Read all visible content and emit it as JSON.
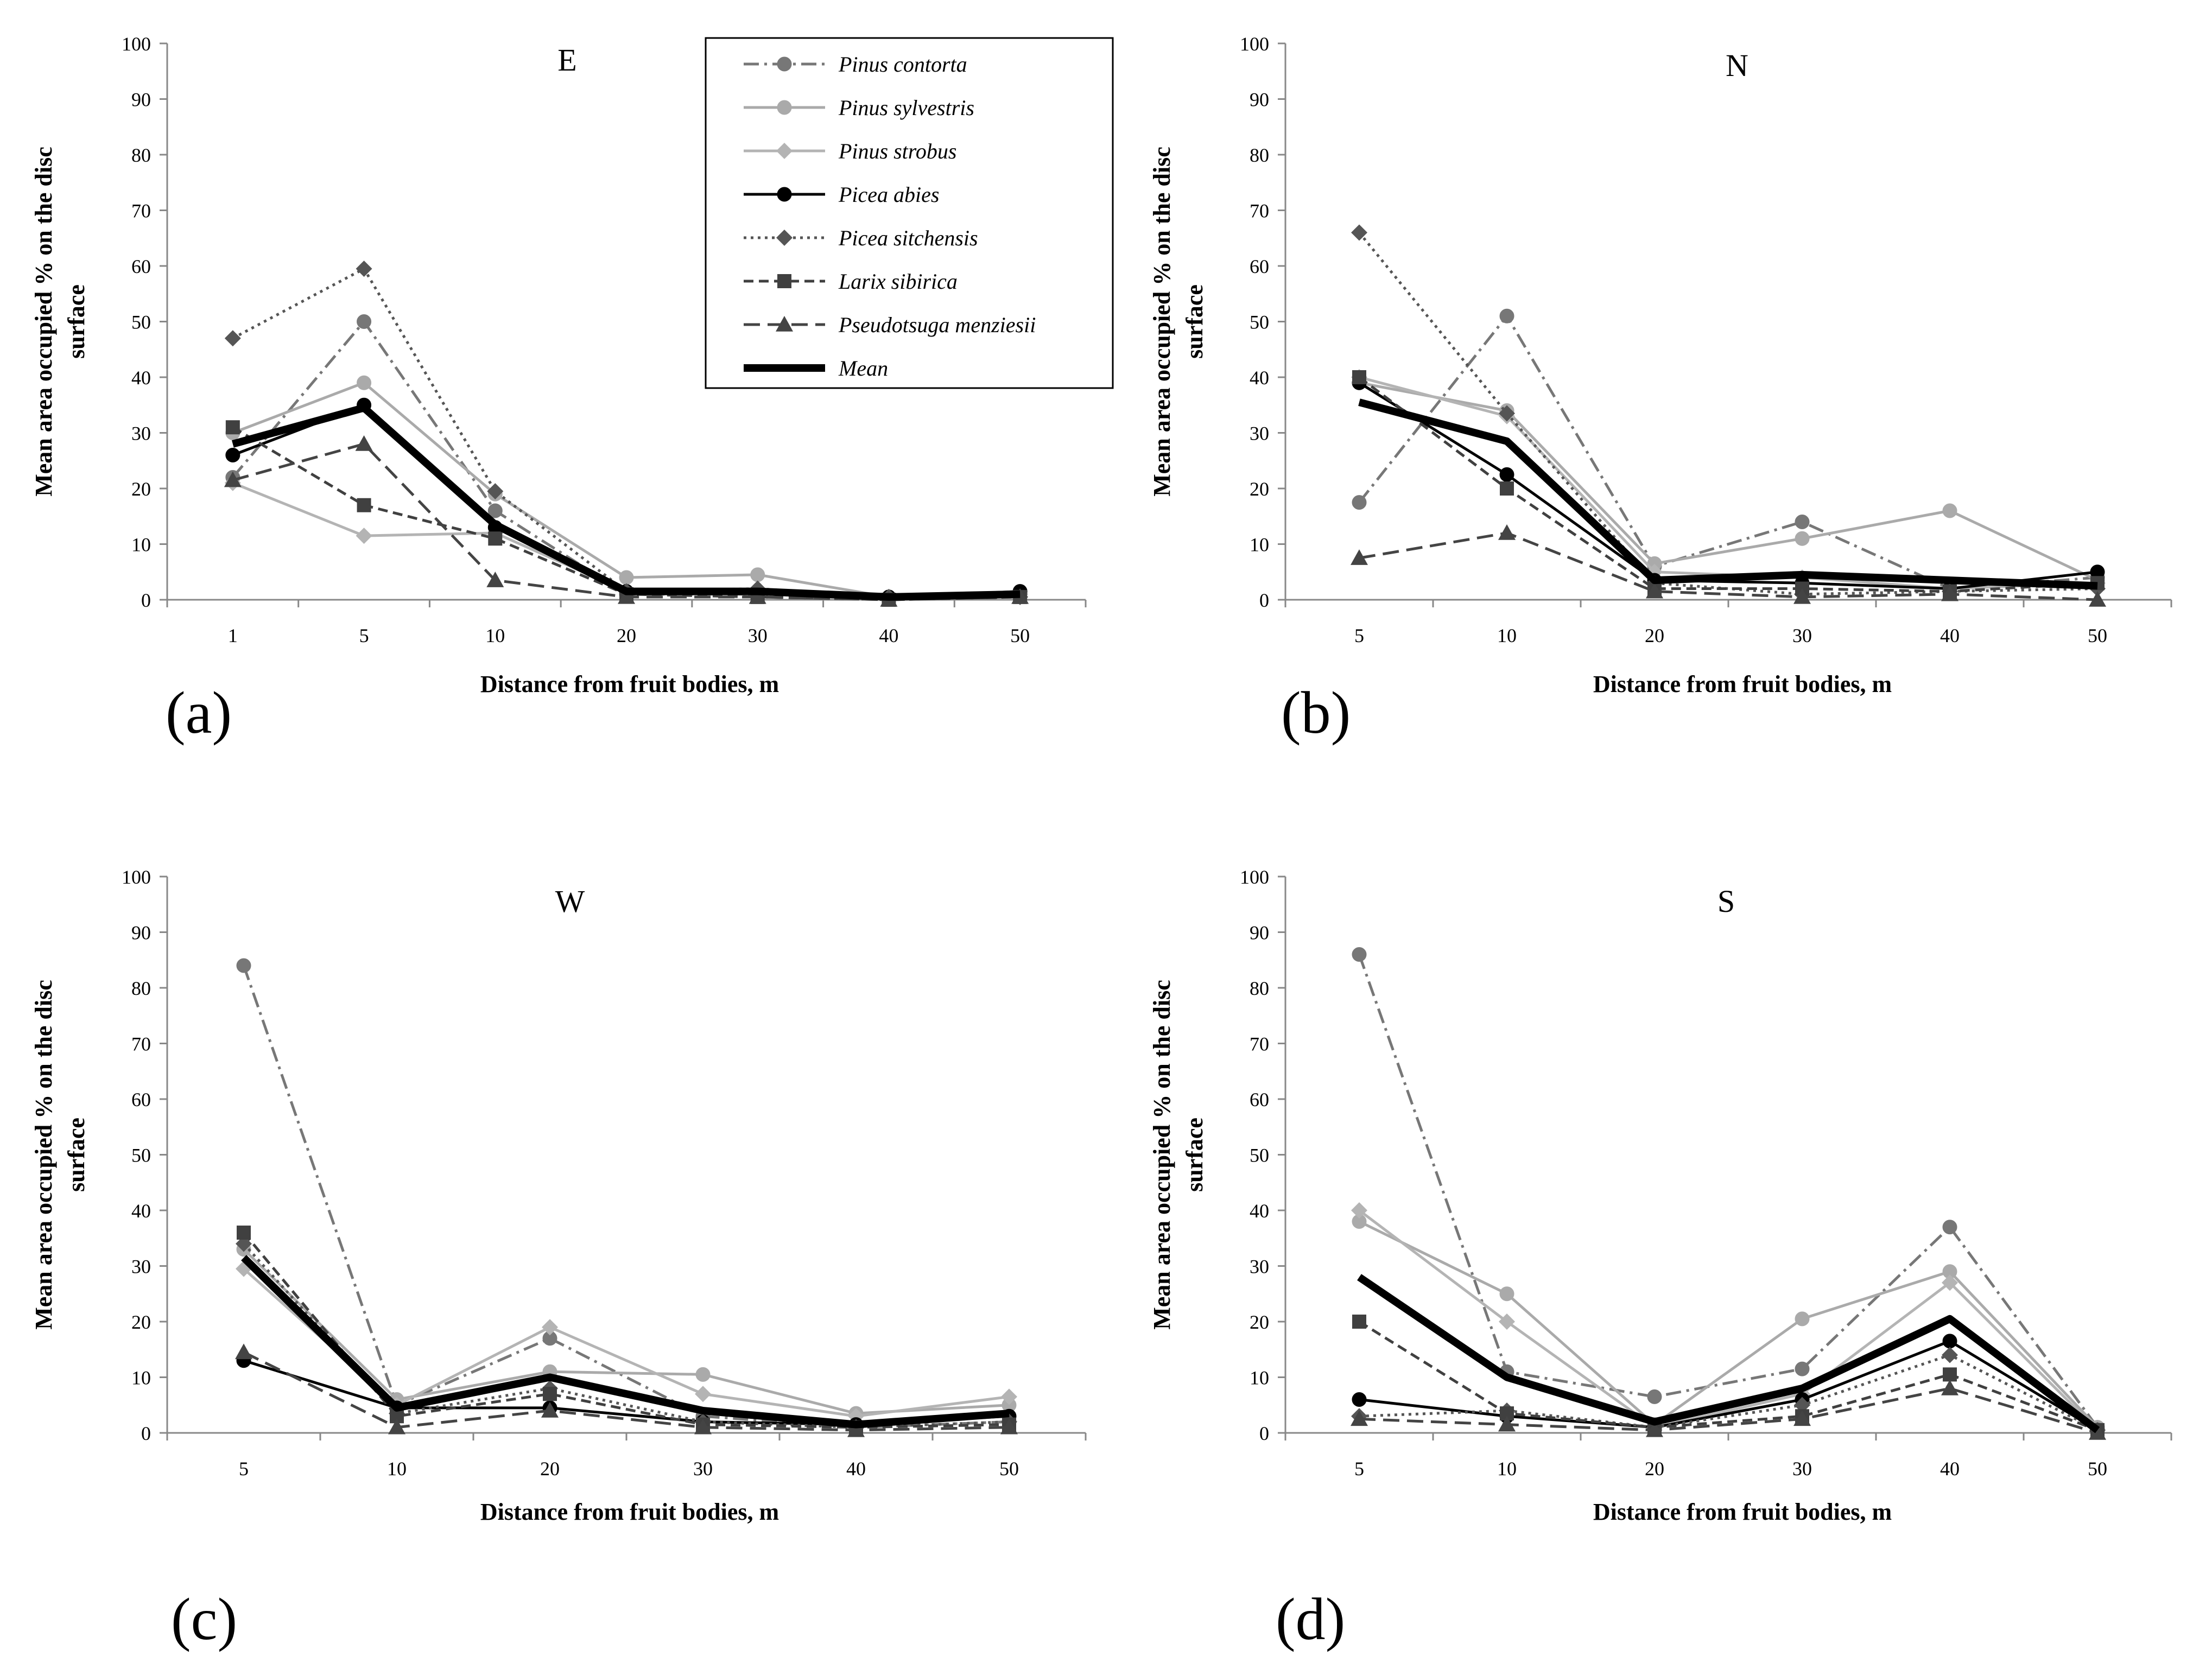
{
  "legend": {
    "entries": [
      {
        "name": "Pinus contorta",
        "color": "#777777",
        "dash": "dashdot",
        "marker": "circle",
        "width": 2
      },
      {
        "name": "Pinus sylvestris",
        "color": "#aaaaaa",
        "dash": "solid",
        "marker": "circle",
        "width": 2
      },
      {
        "name": "Pinus strobus",
        "color": "#b4b4b4",
        "dash": "solid",
        "marker": "diamond",
        "width": 2
      },
      {
        "name": "Picea abies",
        "color": "#000000",
        "dash": "solid",
        "marker": "circle",
        "width": 2
      },
      {
        "name": "Picea sitchensis",
        "color": "#555555",
        "dash": "dot",
        "marker": "diamond",
        "width": 2
      },
      {
        "name": "Larix sibirica",
        "color": "#404040",
        "dash": "dash",
        "marker": "square",
        "width": 2
      },
      {
        "name": "Pseudotsuga menziesii",
        "color": "#444444",
        "dash": "longdash",
        "marker": "triangle",
        "width": 2
      },
      {
        "name": "Mean",
        "color": "#000000",
        "dash": "solid",
        "marker": "none",
        "width": 5
      }
    ]
  },
  "chart_data": [
    {
      "type": "line",
      "label": "(a)",
      "title": "E",
      "xlabel": "Distance from fruit bodies, m",
      "ylabel_lines": [
        "Mean area occupied % on the disc",
        "surface"
      ],
      "x": [
        "1",
        "5",
        "10",
        "20",
        "30",
        "40",
        "50"
      ],
      "ylim": [
        0,
        100
      ],
      "yticks": [
        0,
        10,
        20,
        30,
        40,
        50,
        60,
        70,
        80,
        90,
        100
      ],
      "series": [
        {
          "name": "Pinus contorta",
          "values": [
            22,
            50,
            16,
            1,
            1,
            0.5,
            1.5
          ]
        },
        {
          "name": "Pinus sylvestris",
          "values": [
            30,
            39,
            19,
            4,
            4.5,
            0.5,
            1
          ]
        },
        {
          "name": "Pinus strobus",
          "values": [
            21,
            11.5,
            12,
            1.5,
            1.5,
            0.5,
            1
          ]
        },
        {
          "name": "Picea abies",
          "values": [
            26,
            35,
            13,
            1.5,
            1.5,
            0.5,
            1.5
          ]
        },
        {
          "name": "Picea sitchensis",
          "values": [
            47,
            59.5,
            19.5,
            1.5,
            2,
            0.5,
            0.5
          ]
        },
        {
          "name": "Larix sibirica",
          "values": [
            31,
            17,
            11,
            1,
            0.5,
            0,
            0.5
          ]
        },
        {
          "name": "Pseudotsuga menziesii",
          "values": [
            21.5,
            28,
            3.5,
            0.5,
            0.5,
            0,
            0.5
          ]
        },
        {
          "name": "Mean",
          "values": [
            28,
            34.5,
            13.5,
            1.5,
            1.5,
            0.5,
            1
          ]
        }
      ]
    },
    {
      "type": "line",
      "label": "(b)",
      "title": "N",
      "xlabel": "Distance from fruit bodies, m",
      "ylabel_lines": [
        "Mean area occupied % on the disc",
        "surface"
      ],
      "x": [
        "5",
        "10",
        "20",
        "30",
        "40",
        "50"
      ],
      "ylim": [
        0,
        100
      ],
      "yticks": [
        0,
        10,
        20,
        30,
        40,
        50,
        60,
        70,
        80,
        90,
        100
      ],
      "series": [
        {
          "name": "Pinus contorta",
          "values": [
            17.5,
            51,
            6,
            14,
            2,
            4
          ]
        },
        {
          "name": "Pinus sylvestris",
          "values": [
            39,
            34,
            6.5,
            11,
            16,
            3.5
          ]
        },
        {
          "name": "Pinus strobus",
          "values": [
            40,
            33,
            5,
            4,
            2,
            3
          ]
        },
        {
          "name": "Picea abies",
          "values": [
            39,
            22.5,
            3.5,
            3,
            2,
            5
          ]
        },
        {
          "name": "Picea sitchensis",
          "values": [
            66,
            33.5,
            3,
            1,
            1.5,
            2
          ]
        },
        {
          "name": "Larix sibirica",
          "values": [
            40,
            20,
            2,
            2,
            1.5,
            3
          ]
        },
        {
          "name": "Pseudotsuga menziesii",
          "values": [
            7.5,
            12,
            1.5,
            0.5,
            1,
            0
          ]
        },
        {
          "name": "Mean",
          "values": [
            35.5,
            28.5,
            3.5,
            4.5,
            3.5,
            2.5
          ]
        }
      ]
    },
    {
      "type": "line",
      "label": "(c)",
      "title": "W",
      "xlabel": "Distance from fruit bodies, m",
      "ylabel_lines": [
        "Mean area occupied % on the disc",
        "surface"
      ],
      "x": [
        "5",
        "10",
        "20",
        "30",
        "40",
        "50"
      ],
      "ylim": [
        0,
        100
      ],
      "yticks": [
        0,
        10,
        20,
        30,
        40,
        50,
        60,
        70,
        80,
        90,
        100
      ],
      "series": [
        {
          "name": "Pinus contorta",
          "values": [
            84,
            5,
            17,
            3,
            1,
            2
          ]
        },
        {
          "name": "Pinus sylvestris",
          "values": [
            33,
            6,
            11,
            10.5,
            3.5,
            5
          ]
        },
        {
          "name": "Pinus strobus",
          "values": [
            29.5,
            5,
            19,
            7,
            3,
            6.5
          ]
        },
        {
          "name": "Picea abies",
          "values": [
            13,
            4.5,
            4.5,
            2,
            1.5,
            3
          ]
        },
        {
          "name": "Picea sitchensis",
          "values": [
            34,
            3.5,
            8,
            2,
            1,
            2
          ]
        },
        {
          "name": "Larix sibirica",
          "values": [
            36,
            3,
            7,
            1.5,
            1,
            1.5
          ]
        },
        {
          "name": "Pseudotsuga menziesii",
          "values": [
            14.5,
            1,
            4,
            1,
            0.5,
            1
          ]
        },
        {
          "name": "Mean",
          "values": [
            31.5,
            4.5,
            10,
            4,
            1.5,
            3.5
          ]
        }
      ]
    },
    {
      "type": "line",
      "label": "(d)",
      "title": "S",
      "xlabel": "Distance from fruit bodies, m",
      "ylabel_lines": [
        "Mean area occupied % on the disc",
        "surface"
      ],
      "x": [
        "5",
        "10",
        "20",
        "30",
        "40",
        "50"
      ],
      "ylim": [
        0,
        100
      ],
      "yticks": [
        0,
        10,
        20,
        30,
        40,
        50,
        60,
        70,
        80,
        90,
        100
      ],
      "series": [
        {
          "name": "Pinus contorta",
          "values": [
            86,
            11,
            6.5,
            11.5,
            37,
            1
          ]
        },
        {
          "name": "Pinus sylvestris",
          "values": [
            38,
            25,
            1.5,
            20.5,
            29,
            1
          ]
        },
        {
          "name": "Pinus strobus",
          "values": [
            40,
            20,
            1,
            7,
            27,
            0.5
          ]
        },
        {
          "name": "Picea abies",
          "values": [
            6,
            3,
            1,
            6,
            16.5,
            0.5
          ]
        },
        {
          "name": "Picea sitchensis",
          "values": [
            3,
            4,
            1,
            5,
            14,
            0.5
          ]
        },
        {
          "name": "Larix sibirica",
          "values": [
            20,
            3.5,
            1,
            3,
            10.5,
            0.5
          ]
        },
        {
          "name": "Pseudotsuga menziesii",
          "values": [
            2.5,
            1.5,
            0.5,
            2.5,
            8,
            0
          ]
        },
        {
          "name": "Mean",
          "values": [
            28,
            10,
            2,
            8,
            20.5,
            0.5
          ]
        }
      ]
    }
  ]
}
